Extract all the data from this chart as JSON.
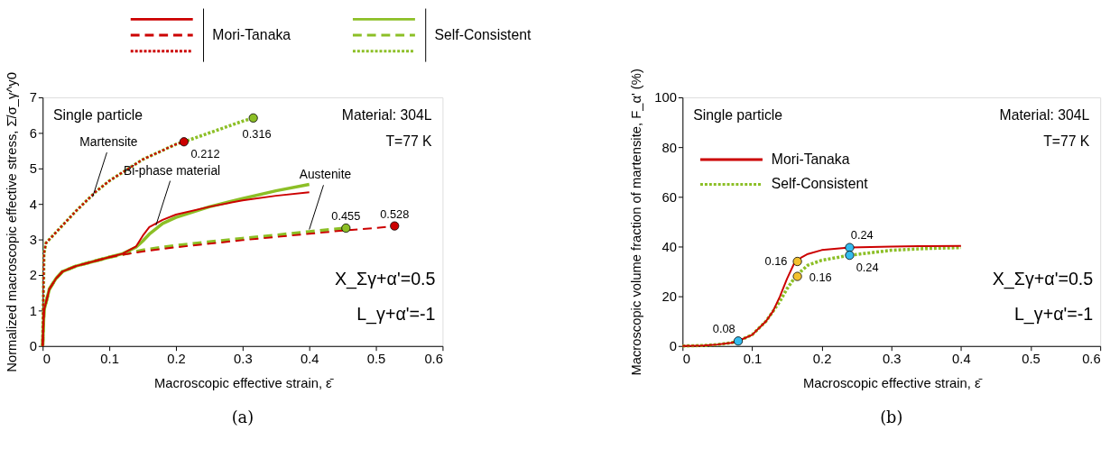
{
  "chart_data": [
    {
      "type": "line",
      "xlabel": "Macroscopic effective strain, ε̄",
      "ylabel": "Normalized macroscopic effective stress, Σ̄/σ_γ^y0",
      "xlim": [
        0,
        0.6
      ],
      "ylim": [
        0,
        7
      ],
      "xticks": [
        0,
        0.1,
        0.2,
        0.3,
        0.4,
        0.5,
        0.6
      ],
      "yticks": [
        0,
        1,
        2,
        3,
        4,
        5,
        6,
        7
      ],
      "legend": "top",
      "series": [
        {
          "name": "Mori-Tanaka",
          "color": "#cc0000",
          "line_style": "solid",
          "x": [
            0,
            0.002,
            0.01,
            0.02,
            0.03,
            0.05,
            0.08,
            0.1,
            0.12,
            0.14,
            0.15,
            0.16,
            0.18,
            0.2,
            0.25,
            0.3,
            0.35,
            0.4
          ],
          "values": [
            0,
            1,
            1.6,
            1.9,
            2.1,
            2.25,
            2.4,
            2.5,
            2.6,
            2.8,
            3.1,
            3.35,
            3.55,
            3.7,
            3.92,
            4.1,
            4.23,
            4.33
          ]
        },
        {
          "color": "#cc0000",
          "line_style": "dashed",
          "x": [
            0,
            0.002,
            0.01,
            0.02,
            0.03,
            0.05,
            0.08,
            0.1,
            0.12,
            0.15,
            0.2,
            0.25,
            0.3,
            0.35,
            0.4,
            0.45,
            0.5,
            0.528
          ],
          "values": [
            0,
            1,
            1.6,
            1.9,
            2.1,
            2.25,
            2.4,
            2.5,
            2.57,
            2.66,
            2.78,
            2.88,
            2.98,
            3.07,
            3.16,
            3.25,
            3.32,
            3.38
          ]
        },
        {
          "color": "#cc0000",
          "line_style": "dotted",
          "x": [
            0,
            0.002,
            0.005,
            0.02,
            0.05,
            0.08,
            0.1,
            0.15,
            0.2,
            0.212
          ],
          "values": [
            0,
            2.6,
            2.9,
            3.2,
            3.8,
            4.35,
            4.65,
            5.25,
            5.68,
            5.75
          ]
        },
        {
          "name": "Self-Consistent",
          "color": "#8cbf26",
          "line_style": "solid",
          "x": [
            0,
            0.002,
            0.01,
            0.02,
            0.03,
            0.05,
            0.08,
            0.1,
            0.12,
            0.14,
            0.15,
            0.16,
            0.18,
            0.2,
            0.25,
            0.3,
            0.35,
            0.4
          ],
          "values": [
            0,
            1,
            1.6,
            1.9,
            2.1,
            2.25,
            2.4,
            2.5,
            2.6,
            2.78,
            2.95,
            3.15,
            3.45,
            3.62,
            3.92,
            4.15,
            4.37,
            4.55
          ]
        },
        {
          "color": "#8cbf26",
          "line_style": "dashed",
          "x": [
            0,
            0.002,
            0.01,
            0.02,
            0.03,
            0.05,
            0.08,
            0.1,
            0.12,
            0.15,
            0.2,
            0.25,
            0.3,
            0.35,
            0.4,
            0.455
          ],
          "values": [
            0,
            1,
            1.6,
            1.9,
            2.1,
            2.25,
            2.4,
            2.5,
            2.58,
            2.7,
            2.83,
            2.93,
            3.03,
            3.12,
            3.22,
            3.32
          ]
        },
        {
          "color": "#8cbf26",
          "line_style": "dotted",
          "x": [
            0,
            0.002,
            0.005,
            0.02,
            0.05,
            0.08,
            0.1,
            0.15,
            0.2,
            0.212,
            0.25,
            0.3,
            0.316
          ],
          "values": [
            0,
            2.6,
            2.9,
            3.2,
            3.8,
            4.35,
            4.65,
            5.25,
            5.68,
            5.75,
            6.0,
            6.33,
            6.42
          ]
        },
        {
          "type": "scatter",
          "x": [
            0.212,
            0.316,
            0.455,
            0.528
          ],
          "values": [
            5.75,
            6.42,
            3.32,
            3.38
          ],
          "colors": [
            "#cc0000",
            "#8cbf26",
            "#8cbf26",
            "#cc0000"
          ]
        }
      ],
      "annotations": [
        "Single particle",
        "Material: 304L",
        "T=77 K",
        "X_Σγ+α'=0.5",
        "L_γ+α'=-1",
        "(a)",
        {
          "text": "Martensite",
          "x": 0.075,
          "y": 4.2
        },
        {
          "text": "Bi-phase material",
          "x": 0.17,
          "y": 3.4
        },
        {
          "text": "Austenite",
          "x": 0.4,
          "y": 3.28
        },
        {
          "text": "0.212",
          "x": 0.212,
          "y": 5.75
        },
        {
          "text": "0.316",
          "x": 0.316,
          "y": 6.42
        },
        {
          "text": "0.455",
          "x": 0.455,
          "y": 3.32
        },
        {
          "text": "0.528",
          "x": 0.528,
          "y": 3.38
        }
      ]
    },
    {
      "type": "line",
      "xlabel": "Macroscopic effective strain, ε̄",
      "ylabel": "Macroscopic volume fraction of martensite, F_α' (%)",
      "xlim": [
        0,
        0.6
      ],
      "ylim": [
        0,
        100
      ],
      "xticks": [
        0,
        0.1,
        0.2,
        0.3,
        0.4,
        0.5,
        0.6
      ],
      "yticks": [
        0,
        20,
        40,
        60,
        80,
        100
      ],
      "legend": "top left",
      "series": [
        {
          "name": "Mori-Tanaka",
          "color": "#cc0000",
          "line_style": "solid",
          "x": [
            0,
            0.03,
            0.05,
            0.07,
            0.08,
            0.1,
            0.12,
            0.13,
            0.14,
            0.15,
            0.16,
            0.17,
            0.18,
            0.2,
            0.24,
            0.3,
            0.35,
            0.4
          ],
          "values": [
            0,
            0.2,
            0.6,
            1.3,
            2,
            4.5,
            10,
            14,
            20,
            27,
            33,
            35.5,
            37,
            38.6,
            39.6,
            40,
            40.2,
            40.3
          ]
        },
        {
          "name": "Self-Consistent",
          "color": "#8cbf26",
          "line_style": "dotted",
          "x": [
            0,
            0.03,
            0.05,
            0.07,
            0.08,
            0.1,
            0.12,
            0.13,
            0.14,
            0.15,
            0.16,
            0.17,
            0.18,
            0.2,
            0.24,
            0.3,
            0.35,
            0.4
          ],
          "values": [
            0,
            0.2,
            0.6,
            1.3,
            2,
            4.5,
            10,
            14,
            18,
            23,
            27,
            30,
            32.5,
            34.5,
            36.5,
            38.5,
            39.2,
            39.6
          ]
        },
        {
          "type": "scatter",
          "x": [
            0.08,
            0.165,
            0.165,
            0.24,
            0.24
          ],
          "values": [
            2,
            34,
            28,
            39.6,
            36.5
          ],
          "colors": [
            "#33bbee",
            "#f2c12e",
            "#f2c12e",
            "#33bbee",
            "#33bbee"
          ]
        }
      ],
      "annotations": [
        "Single particle",
        "Material: 304L",
        "T=77 K",
        "X_Σγ+α'=0.5",
        "L_γ+α'=-1",
        "(b)",
        {
          "text": "0.08",
          "x": 0.08,
          "y": 2
        },
        {
          "text": "0.16",
          "x": 0.165,
          "y": 34
        },
        {
          "text": "0.16",
          "x": 0.165,
          "y": 28
        },
        {
          "text": "0.24",
          "x": 0.24,
          "y": 39.6
        },
        {
          "text": "0.24",
          "x": 0.24,
          "y": 36.5
        }
      ]
    }
  ]
}
